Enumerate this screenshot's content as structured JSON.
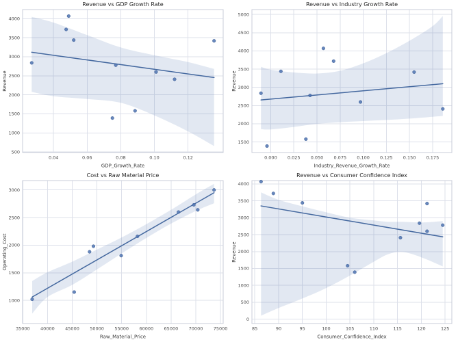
{
  "figure": {
    "background": "#ffffff",
    "accent_color": "#4c72b0",
    "line_color": "#44689f",
    "point_fill": "#4c72b0",
    "point_stroke": "#3b5c94",
    "band_fill": "#4c72b0",
    "band_opacity": 0.16,
    "grid_color": "#dde0ea",
    "spine_color": "#c8cdd8",
    "title_color": "#262626",
    "axis_label_color": "#3c3c3c",
    "tick_label_color": "#4a4a4a"
  },
  "chart_data": [
    {
      "type": "scatter",
      "title": "Revenue vs GDP Growth Rate",
      "xlabel": "GDP_Growth_Rate",
      "ylabel": "Revenue",
      "x": [
        0.027,
        0.0475,
        0.049,
        0.052,
        0.075,
        0.077,
        0.0885,
        0.101,
        0.112,
        0.1355
      ],
      "y": [
        2840,
        3720,
        4070,
        3440,
        1390,
        2780,
        1580,
        2600,
        2410,
        3420
      ],
      "trend": {
        "x": [
          0.027,
          0.1355
        ],
        "y": [
          3120,
          2455
        ]
      },
      "band": {
        "x": [
          0.027,
          0.04,
          0.06,
          0.08,
          0.1,
          0.12,
          0.1355
        ],
        "upper": [
          4050,
          3900,
          3570,
          3245,
          3040,
          2860,
          2680
        ],
        "lower": [
          2080,
          1965,
          1890,
          1790,
          1460,
          1040,
          655
        ]
      },
      "xlim": [
        0.0216,
        0.1409
      ],
      "ylim": [
        484,
        4241
      ],
      "xticks": [
        0.04,
        0.06,
        0.08,
        0.1,
        0.12
      ],
      "xtick_labels": [
        "0.04",
        "0.06",
        "0.08",
        "0.10",
        "0.12"
      ],
      "yticks": [
        500,
        1000,
        1500,
        2000,
        2500,
        3000,
        3500,
        4000
      ],
      "ytick_labels": [
        "500",
        "1000",
        "1500",
        "2000",
        "2500",
        "3000",
        "3500",
        "4000"
      ],
      "grid": true,
      "legend": null
    },
    {
      "type": "scatter",
      "title": "Revenue vs Industry Growth Rate",
      "xlabel": "Industry_Revenue_Growth_Rate",
      "ylabel": "Revenue",
      "x": [
        -0.0105,
        -0.004,
        0.011,
        0.038,
        0.0425,
        0.057,
        0.068,
        0.097,
        0.155,
        0.186
      ],
      "y": [
        2840,
        1390,
        3440,
        1580,
        2780,
        4070,
        3720,
        2600,
        3420,
        2410
      ],
      "trend": {
        "x": [
          -0.0105,
          0.186
        ],
        "y": [
          2655,
          3100
        ]
      },
      "band": {
        "x": [
          -0.0105,
          0.0,
          0.025,
          0.05,
          0.075,
          0.1,
          0.125,
          0.15,
          0.175,
          0.186
        ],
        "upper": [
          3565,
          3485,
          3410,
          3380,
          3455,
          3660,
          3940,
          4280,
          4680,
          4957
        ],
        "lower": [
          1852,
          1846,
          1914,
          2000,
          2044,
          2076,
          2106,
          2143,
          2193,
          2217
        ]
      },
      "xlim": [
        -0.0203,
        0.1958
      ],
      "ylim": [
        1212,
        5135
      ],
      "xticks": [
        0.0,
        0.025,
        0.05,
        0.075,
        0.1,
        0.125,
        0.15,
        0.175
      ],
      "xtick_labels": [
        "0.000",
        "0.025",
        "0.050",
        "0.075",
        "0.100",
        "0.125",
        "0.150",
        "0.175"
      ],
      "yticks": [
        1500,
        2000,
        2500,
        3000,
        3500,
        4000,
        4500,
        5000
      ],
      "ytick_labels": [
        "1500",
        "2000",
        "2500",
        "3000",
        "3500",
        "4000",
        "4500",
        "5000"
      ],
      "grid": true,
      "legend": null
    },
    {
      "type": "scatter",
      "title": "Cost vs Raw Material Price",
      "xlabel": "Raw_Material_Price",
      "ylabel": "Operating_Cost",
      "x": [
        36900,
        45400,
        48500,
        49300,
        54900,
        58200,
        66500,
        69600,
        70400,
        73700
      ],
      "y": [
        1020,
        1150,
        1880,
        1980,
        1810,
        2160,
        2600,
        2730,
        2640,
        3000
      ],
      "trend": {
        "x": [
          36900,
          73700
        ],
        "y": [
          1060,
          2950
        ]
      },
      "band": {
        "x": [
          36900,
          40000,
          45000,
          50000,
          55000,
          60000,
          65000,
          70000,
          73700
        ],
        "upper": [
          1350,
          1510,
          1700,
          1920,
          2140,
          2380,
          2640,
          2920,
          3110
        ],
        "lower": [
          760,
          1060,
          1280,
          1560,
          1850,
          2130,
          2390,
          2620,
          2760
        ]
      },
      "xlim": [
        34955,
        75545
      ],
      "ylim": [
        580,
        3170
      ],
      "xticks": [
        35000,
        40000,
        45000,
        50000,
        55000,
        60000,
        65000,
        70000,
        75000
      ],
      "xtick_labels": [
        "35000",
        "40000",
        "45000",
        "50000",
        "55000",
        "60000",
        "65000",
        "70000",
        "75000"
      ],
      "yticks": [
        1000,
        1500,
        2000,
        2500,
        3000
      ],
      "ytick_labels": [
        "1000",
        "1500",
        "2000",
        "2500",
        "3000"
      ],
      "grid": true,
      "legend": null
    },
    {
      "type": "scatter",
      "title": "Revenue vs Consumer Confidence Index",
      "xlabel": "Consumer_Confidence_Index",
      "ylabel": "Revenue",
      "x": [
        86.3,
        88.9,
        95.0,
        104.5,
        106.0,
        115.6,
        119.6,
        121.2,
        121.2,
        124.5
      ],
      "y": [
        4070,
        3720,
        3440,
        1580,
        1390,
        2410,
        2840,
        3420,
        2600,
        2780
      ],
      "trend": {
        "x": [
          86.3,
          124.5
        ],
        "y": [
          3350,
          2435
        ]
      },
      "band": {
        "x": [
          86.3,
          90,
          95,
          100,
          105,
          110,
          113,
          116,
          120,
          124.5
        ],
        "upper": [
          3750,
          3530,
          3340,
          3160,
          3000,
          2920,
          2880,
          2880,
          2860,
          2900
        ],
        "lower": [
          100,
          330,
          610,
          920,
          1290,
          1700,
          1920,
          1990,
          1830,
          1560
        ]
      },
      "xlim": [
        84.39,
        126.41
      ],
      "ylim": [
        -130,
        4100
      ],
      "xticks": [
        85,
        90,
        95,
        100,
        105,
        110,
        115,
        120,
        125
      ],
      "xtick_labels": [
        "85",
        "90",
        "95",
        "100",
        "105",
        "110",
        "115",
        "120",
        "125"
      ],
      "yticks": [
        0,
        500,
        1000,
        1500,
        2000,
        2500,
        3000,
        3500,
        4000
      ],
      "ytick_labels": [
        "0",
        "500",
        "1000",
        "1500",
        "2000",
        "2500",
        "3000",
        "3500",
        "4000"
      ],
      "grid": true,
      "legend": null
    }
  ]
}
